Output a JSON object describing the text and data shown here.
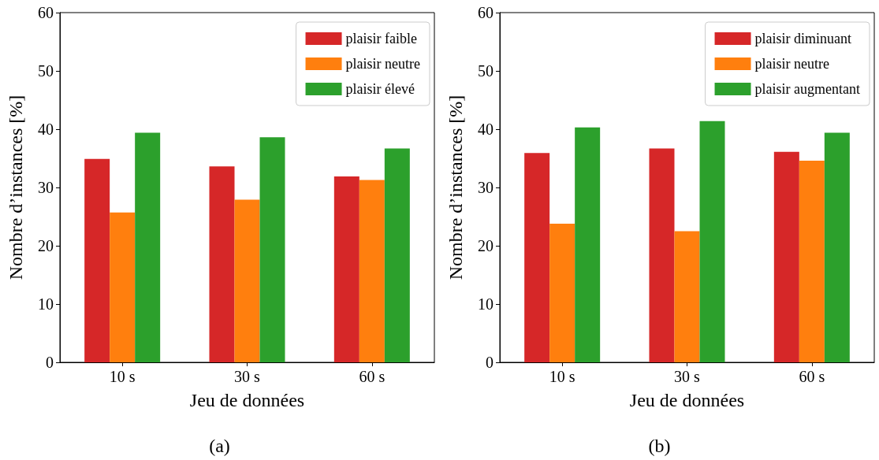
{
  "chart_data": [
    {
      "type": "bar",
      "xlabel": "Jeu de données",
      "ylabel": "Nombre d’instances [%]",
      "annotations": [
        "(a)"
      ],
      "categories": [
        "10 s",
        "30 s",
        "60 s"
      ],
      "ylim": [
        0,
        60
      ],
      "yticks": [
        0,
        10,
        20,
        30,
        40,
        50,
        60
      ],
      "grid": false,
      "legend": "top right",
      "series": [
        {
          "name": "plaisir faible",
          "color": "#d62728",
          "values": [
            34.9,
            33.6,
            31.9
          ]
        },
        {
          "name": "plaisir neutre",
          "color": "#ff7f0e",
          "values": [
            25.7,
            27.9,
            31.3
          ]
        },
        {
          "name": "plaisir élevé",
          "color": "#2ca02c",
          "values": [
            39.4,
            38.6,
            36.7
          ]
        }
      ]
    },
    {
      "type": "bar",
      "xlabel": "Jeu de données",
      "ylabel": "Nombre d’instances [%]",
      "annotations": [
        "(b)"
      ],
      "categories": [
        "10 s",
        "30 s",
        "60 s"
      ],
      "ylim": [
        0,
        60
      ],
      "yticks": [
        0,
        10,
        20,
        30,
        40,
        50,
        60
      ],
      "grid": false,
      "legend": "top right",
      "series": [
        {
          "name": "plaisir diminuant",
          "color": "#d62728",
          "values": [
            35.9,
            36.7,
            36.1
          ]
        },
        {
          "name": "plaisir neutre",
          "color": "#ff7f0e",
          "values": [
            23.8,
            22.5,
            34.6
          ]
        },
        {
          "name": "plaisir augmentant",
          "color": "#2ca02c",
          "values": [
            40.3,
            41.4,
            39.4
          ]
        }
      ]
    }
  ]
}
